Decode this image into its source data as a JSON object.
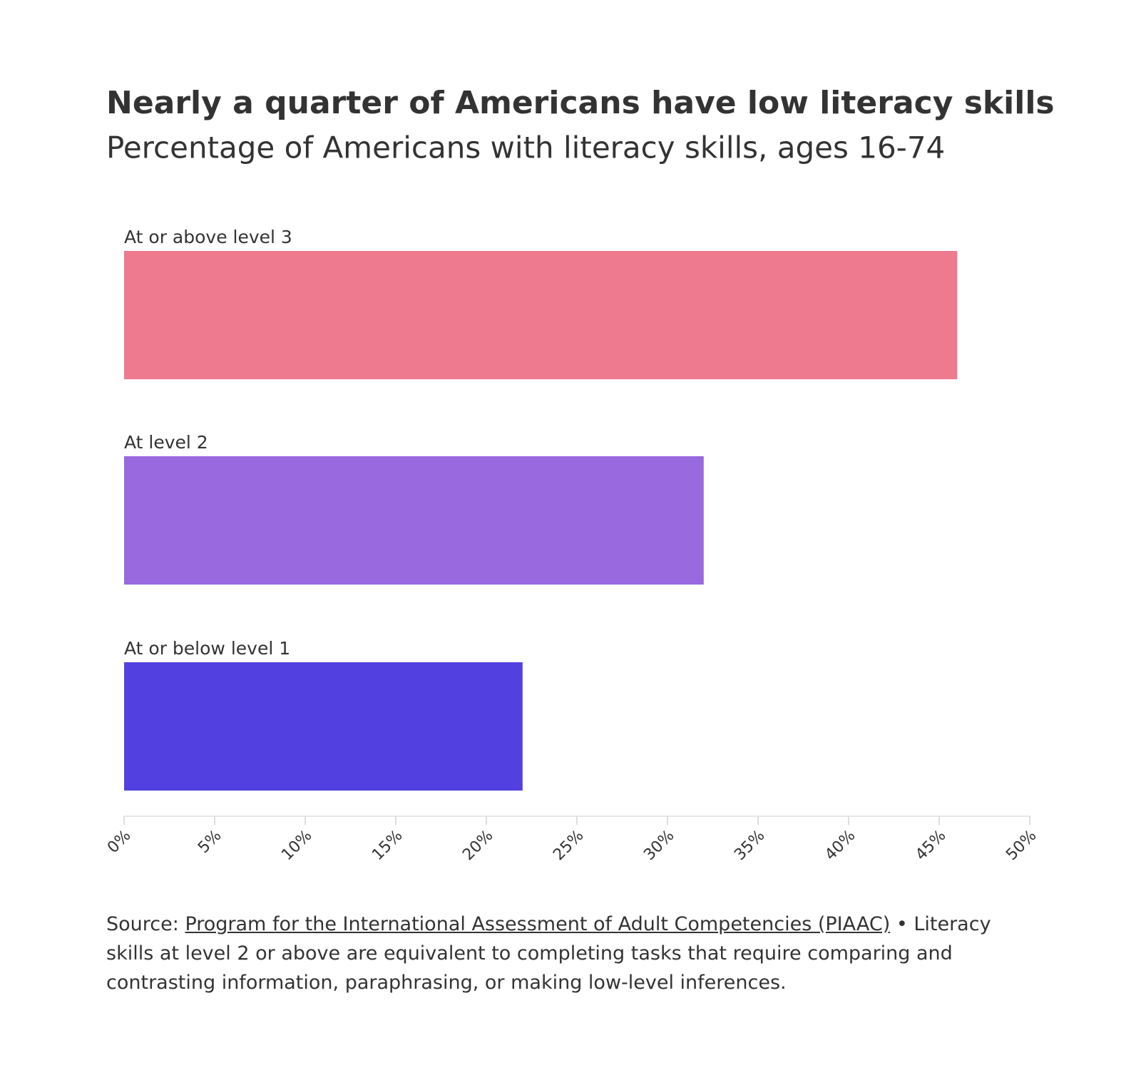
{
  "chart_data": {
    "type": "bar",
    "orientation": "horizontal",
    "title": "Nearly a quarter of Americans have low literacy skills",
    "subtitle": "Percentage of Americans with literacy skills, ages 16-74",
    "categories": [
      "At or above level 3",
      "At level 2",
      "At or below level 1"
    ],
    "values": [
      46,
      32,
      22
    ],
    "colors": [
      "#ed7a8e",
      "#9869df",
      "#5340e0"
    ],
    "xlim": [
      0,
      50
    ],
    "xticks": [
      {
        "value": 0,
        "label": "0%"
      },
      {
        "value": 5,
        "label": "5%"
      },
      {
        "value": 10,
        "label": "10%"
      },
      {
        "value": 15,
        "label": "15%"
      },
      {
        "value": 20,
        "label": "20%"
      },
      {
        "value": 25,
        "label": "25%"
      },
      {
        "value": 30,
        "label": "30%"
      },
      {
        "value": 35,
        "label": "35%"
      },
      {
        "value": 40,
        "label": "40%"
      },
      {
        "value": 45,
        "label": "45%"
      },
      {
        "value": 50,
        "label": "50%"
      }
    ],
    "source_label": "Source:",
    "source_link": "Program for the International Assessment of Adult Competencies (PIAAC)",
    "note": "• Literacy skills at level 2 or above are equivalent to completing tasks that require comparing and contrasting information, paraphrasing, or making low-level inferences."
  }
}
